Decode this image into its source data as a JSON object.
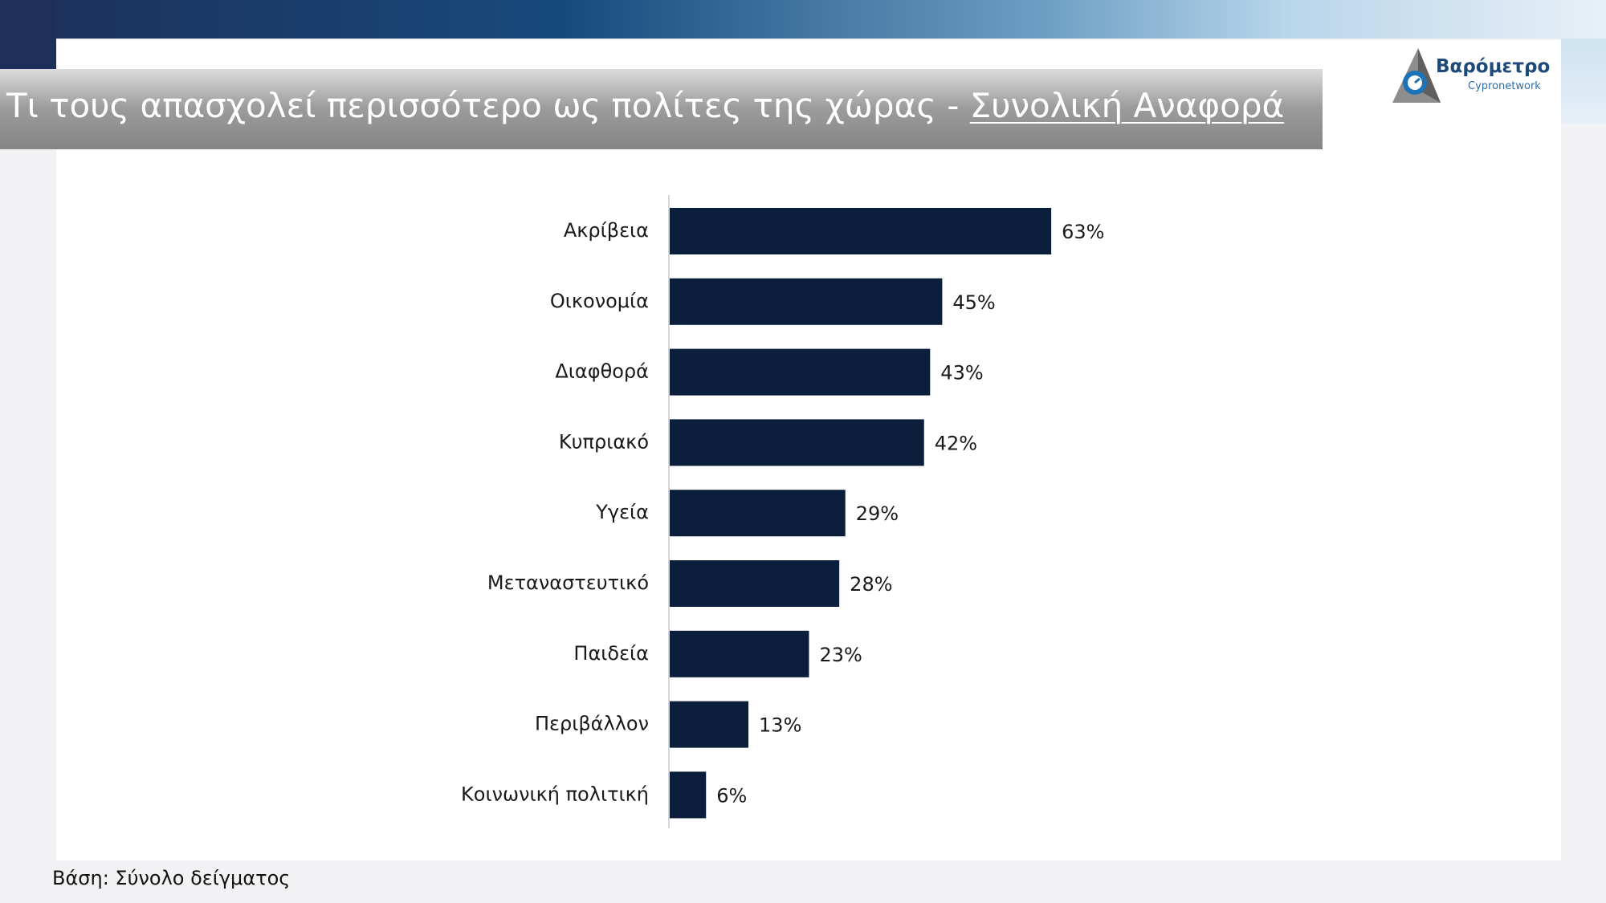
{
  "header": {
    "title_prefix": "Τι τους απασχολεί περισσότερο ως πολίτες της χώρας - ",
    "title_link": "Συνολική Αναφορά"
  },
  "logo": {
    "name": "Βαρόμετρο",
    "sub": "Cypronetwork"
  },
  "footer": {
    "base": "Βάση: Σύνολο δείγματος"
  },
  "colors": {
    "bar": "#0b1f3d",
    "axis": "#d6d6d6",
    "text": "#1a1a1a"
  },
  "chart_data": {
    "type": "bar",
    "orientation": "horizontal",
    "categories": [
      "Ακρίβεια",
      "Οικονομία",
      "Διαφθορά",
      "Κυπριακό",
      "Υγεία",
      "Μεταναστευτικό",
      "Παιδεία",
      "Περιβάλλον",
      "Κοινωνική πολιτική"
    ],
    "values": [
      63,
      45,
      43,
      42,
      29,
      28,
      23,
      13,
      6
    ],
    "value_labels": [
      "63%",
      "45%",
      "43%",
      "42%",
      "29%",
      "28%",
      "23%",
      "13%",
      "6%"
    ],
    "unit": "%",
    "xlim": [
      0,
      100
    ],
    "grid": false,
    "legend": "none"
  }
}
